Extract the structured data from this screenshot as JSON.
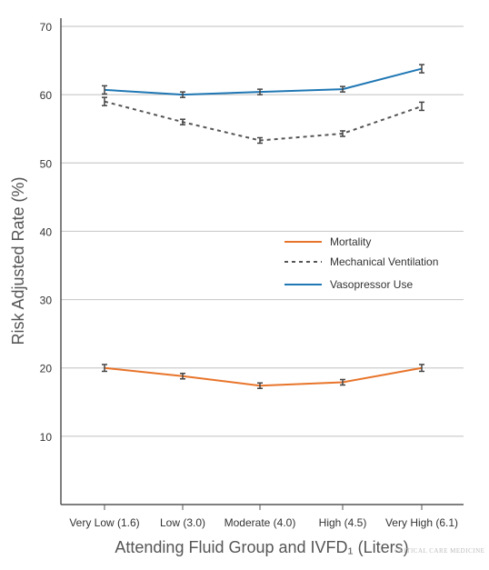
{
  "chart_data": {
    "type": "line",
    "categories": [
      "Very Low (1.6)",
      "Low (3.0)",
      "Moderate (4.0)",
      "High (4.5)",
      "Very High (6.1)"
    ],
    "xlabel": "Attending Fluid Group and IVFD₁ (Liters)",
    "ylabel": "Risk Adjusted Rate (%)",
    "ylim": [
      0,
      70
    ],
    "yticks": [
      10,
      20,
      30,
      40,
      50,
      60,
      70
    ],
    "grid": "horizontal",
    "legend_position": "center-right",
    "series": [
      {
        "name": "Mortality",
        "color": "#e8742a",
        "dash": "solid",
        "values": [
          20.0,
          18.8,
          17.4,
          17.9,
          20.0
        ],
        "errors": [
          0.5,
          0.4,
          0.4,
          0.4,
          0.5
        ]
      },
      {
        "name": "Mechanical Ventilation",
        "color": "#555555",
        "dash": "dashed",
        "values": [
          59.0,
          56.0,
          53.3,
          54.3,
          58.3
        ],
        "errors": [
          0.6,
          0.4,
          0.4,
          0.4,
          0.6
        ]
      },
      {
        "name": "Vasopressor Use",
        "color": "#1f77b4",
        "dash": "solid",
        "values": [
          60.7,
          60.0,
          60.4,
          60.8,
          63.8
        ],
        "errors": [
          0.6,
          0.4,
          0.4,
          0.4,
          0.6
        ]
      }
    ]
  },
  "watermark": "CRITICAL CARE MEDICINE"
}
